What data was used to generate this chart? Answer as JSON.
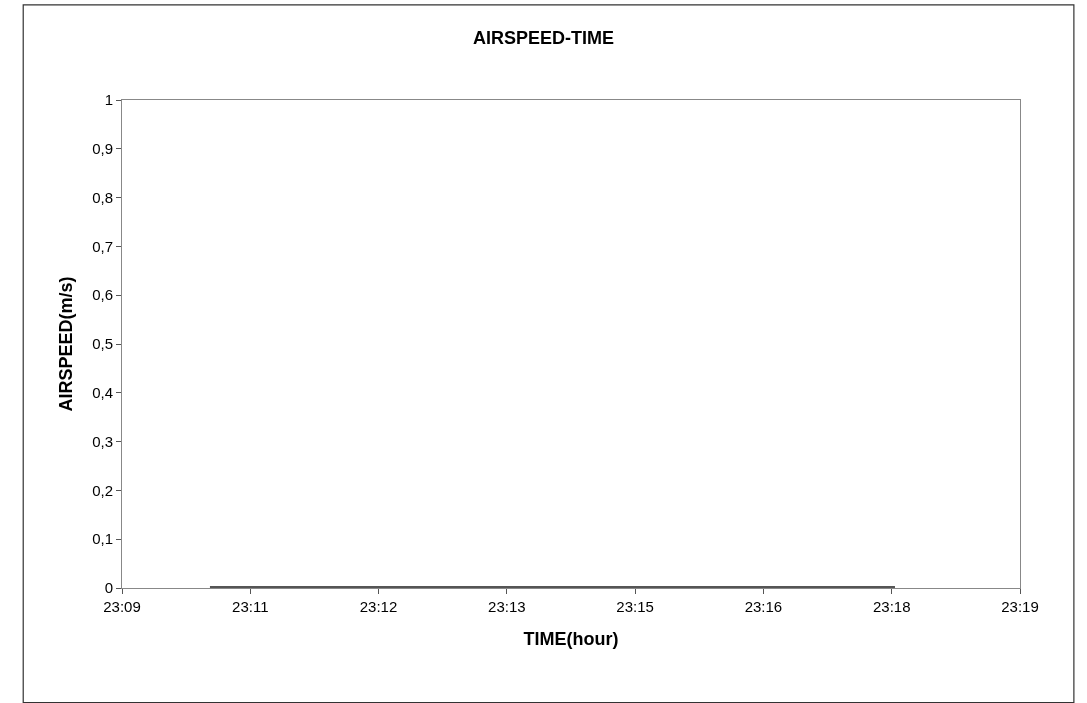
{
  "chart_data": {
    "type": "line",
    "title": "AIRSPEED-TIME",
    "xlabel": "TIME(hour)",
    "ylabel": "AIRSPEED(m/s)",
    "series": [
      {
        "color": "#555555",
        "x": [
          23.17302,
          23.29257
        ],
        "values": [
          0,
          0
        ]
      }
    ],
    "xlim": [
      23.15767,
      23.31439
    ],
    "xticks": [
      {
        "value": 23.15767,
        "label": "23:09"
      },
      {
        "value": 23.18006,
        "label": "23:11"
      },
      {
        "value": 23.20244,
        "label": "23:12"
      },
      {
        "value": 23.22483,
        "label": "23:13"
      },
      {
        "value": 23.24722,
        "label": "23:15"
      },
      {
        "value": 23.26961,
        "label": "23:16"
      },
      {
        "value": 23.292,
        "label": "23:18"
      },
      {
        "value": 23.31439,
        "label": "23:19"
      }
    ],
    "ylim": [
      0,
      1
    ],
    "yticks": [
      0,
      {
        "value": 0.1,
        "label": "0,1"
      },
      {
        "value": 0.2,
        "label": "0,2"
      },
      {
        "value": 0.3,
        "label": "0,3"
      },
      {
        "value": 0.4,
        "label": "0,4"
      },
      {
        "value": 0.5,
        "label": "0,5"
      },
      {
        "value": 0.6,
        "label": "0,6"
      },
      {
        "value": 0.7,
        "label": "0,7"
      },
      {
        "value": 0.8,
        "label": "0,8"
      },
      {
        "value": 0.9,
        "label": "0,9"
      },
      1
    ],
    "grid": false,
    "marker": "none",
    "line_style": "solid"
  }
}
